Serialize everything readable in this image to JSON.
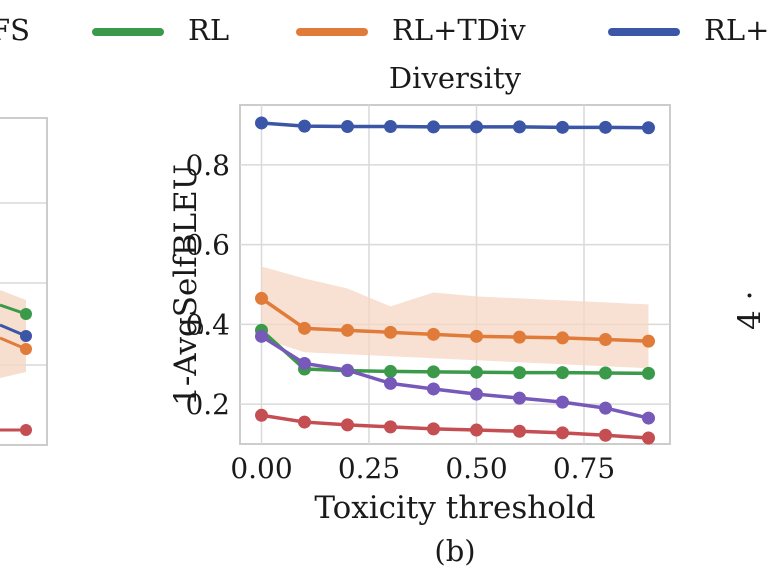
{
  "legend": [
    {
      "label": "FS",
      "color": "#c44e52"
    },
    {
      "label": "RL",
      "color": "#3a9a4a"
    },
    {
      "label": "RL+TDiv",
      "color": "#e07b39"
    },
    {
      "label": "RL+",
      "color": "#3b56a6"
    }
  ],
  "chart_data": [
    {
      "type": "line",
      "title": "Diversity",
      "caption": "(b)",
      "xlabel": "Toxicity threshold",
      "ylabel": "1-AvgSelfBLEU",
      "xlim": [
        -0.05,
        0.95
      ],
      "ylim": [
        0.1,
        0.95
      ],
      "xticks": [
        0.0,
        0.25,
        0.5,
        0.75
      ],
      "xtick_labels": [
        "0.00",
        "0.25",
        "0.50",
        "0.75"
      ],
      "yticks": [
        0.2,
        0.4,
        0.6,
        0.8
      ],
      "ytick_labels": [
        "0.2",
        "0.4",
        "0.6",
        "0.8"
      ],
      "grid": true,
      "x": [
        0.0,
        0.1,
        0.2,
        0.3,
        0.4,
        0.5,
        0.6,
        0.7,
        0.8,
        0.9
      ],
      "series": [
        {
          "color": "#3b56a6",
          "values": [
            0.905,
            0.897,
            0.896,
            0.896,
            0.895,
            0.895,
            0.895,
            0.894,
            0.894,
            0.893
          ]
        },
        {
          "color": "#e07b39",
          "values": [
            0.465,
            0.39,
            0.385,
            0.38,
            0.375,
            0.37,
            0.368,
            0.366,
            0.362,
            0.358
          ],
          "band_upper": [
            0.545,
            0.515,
            0.49,
            0.445,
            0.48,
            0.47,
            0.465,
            0.46,
            0.455,
            0.45
          ],
          "band_lower": [
            0.365,
            0.33,
            0.325,
            0.32,
            0.315,
            0.31,
            0.305,
            0.3,
            0.295,
            0.29
          ]
        },
        {
          "color": "#3a9a4a",
          "values": [
            0.385,
            0.288,
            0.284,
            0.282,
            0.281,
            0.28,
            0.279,
            0.279,
            0.278,
            0.277
          ]
        },
        {
          "color": "#7659b8",
          "values": [
            0.37,
            0.302,
            0.285,
            0.252,
            0.238,
            0.225,
            0.215,
            0.205,
            0.19,
            0.165
          ]
        },
        {
          "color": "#c44e52",
          "values": [
            0.172,
            0.155,
            0.148,
            0.143,
            0.138,
            0.135,
            0.132,
            0.128,
            0.122,
            0.115
          ]
        }
      ]
    },
    {
      "type": "line",
      "partial": "left panel (a), cropped",
      "yticks": [],
      "grid": true,
      "series": [
        {
          "color": "#3a9a4a",
          "values": [
            0.48
          ]
        },
        {
          "color": "#3b56a6",
          "values": [
            0.45
          ]
        },
        {
          "color": "#e07b39",
          "values": [
            0.44
          ]
        },
        {
          "color": "#c44e52",
          "values": [
            0.33
          ]
        }
      ]
    }
  ]
}
